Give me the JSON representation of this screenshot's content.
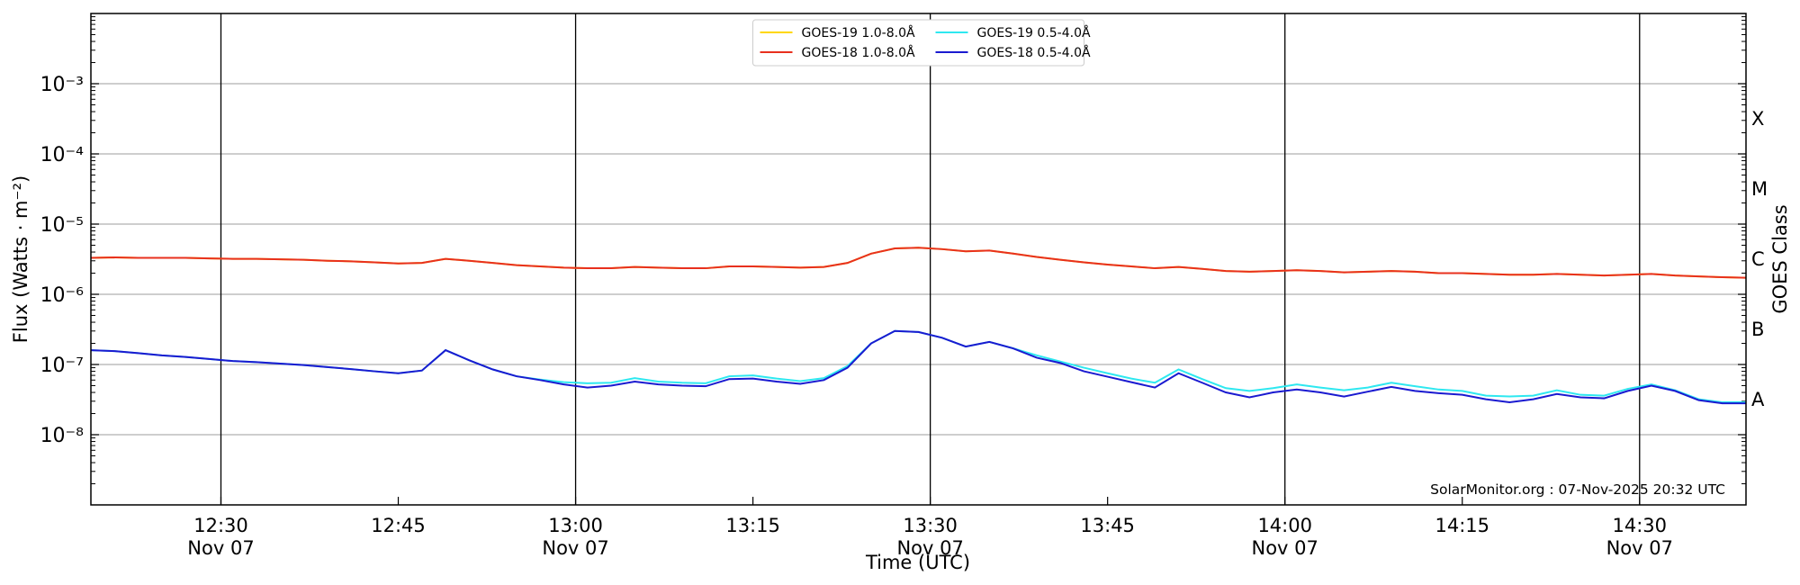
{
  "chart_data": {
    "type": "line",
    "y_scale": "log",
    "grid": "y",
    "legend": "upper center",
    "xlabel": "Time (UTC)",
    "ylabel": "Flux (Watts · m⁻²)",
    "y2label": "GOES Class",
    "annotation": "SolarMonitor.org : 07-Nov-2025 20:32 UTC",
    "xlim": [
      "12:19",
      "14:39"
    ],
    "xticks": [
      {
        "value": "12:30",
        "label": "12:30",
        "date": "Nov 07"
      },
      {
        "value": "12:45",
        "label": "12:45"
      },
      {
        "value": "13:00",
        "label": "13:00",
        "date": "Nov 07"
      },
      {
        "value": "13:15",
        "label": "13:15"
      },
      {
        "value": "13:30",
        "label": "13:30",
        "date": "Nov 07"
      },
      {
        "value": "13:45",
        "label": "13:45"
      },
      {
        "value": "14:00",
        "label": "14:00",
        "date": "Nov 07"
      },
      {
        "value": "14:15",
        "label": "14:15"
      },
      {
        "value": "14:30",
        "label": "14:30",
        "date": "Nov 07"
      }
    ],
    "ylim": [
      1e-09,
      0.01
    ],
    "yticks": [
      {
        "value": 1e-08,
        "label": "10⁻⁸"
      },
      {
        "value": 1e-07,
        "label": "10⁻⁷"
      },
      {
        "value": 1e-06,
        "label": "10⁻⁶"
      },
      {
        "value": 1e-05,
        "label": "10⁻⁵"
      },
      {
        "value": 0.0001,
        "label": "10⁻⁴"
      },
      {
        "value": 0.001,
        "label": "10⁻³"
      }
    ],
    "y2ticks": [
      {
        "value": 3.16e-08,
        "label": "A"
      },
      {
        "value": 3.16e-07,
        "label": "B"
      },
      {
        "value": 3.16e-06,
        "label": "C"
      },
      {
        "value": 3.16e-05,
        "label": "M"
      },
      {
        "value": 0.000316,
        "label": "X"
      }
    ],
    "x": [
      "12:19",
      "12:21",
      "12:23",
      "12:25",
      "12:27",
      "12:29",
      "12:31",
      "12:33",
      "12:35",
      "12:37",
      "12:39",
      "12:41",
      "12:43",
      "12:45",
      "12:47",
      "12:49",
      "12:51",
      "12:53",
      "12:55",
      "12:57",
      "12:59",
      "13:01",
      "13:03",
      "13:05",
      "13:07",
      "13:09",
      "13:11",
      "13:13",
      "13:15",
      "13:17",
      "13:19",
      "13:21",
      "13:23",
      "13:25",
      "13:27",
      "13:29",
      "13:31",
      "13:33",
      "13:35",
      "13:37",
      "13:39",
      "13:41",
      "13:43",
      "13:45",
      "13:47",
      "13:49",
      "13:51",
      "13:53",
      "13:55",
      "13:57",
      "13:59",
      "14:01",
      "14:03",
      "14:05",
      "14:07",
      "14:09",
      "14:11",
      "14:13",
      "14:15",
      "14:17",
      "14:19",
      "14:21",
      "14:23",
      "14:25",
      "14:27",
      "14:29",
      "14:31",
      "14:33",
      "14:35",
      "14:37",
      "14:39"
    ],
    "series": [
      {
        "name": "GOES-19 1.0-8.0Å",
        "color": "#ffd700",
        "values": [
          3.3e-06,
          3.35e-06,
          3.3e-06,
          3.3e-06,
          3.3e-06,
          3.25e-06,
          3.2e-06,
          3.2e-06,
          3.15e-06,
          3.1e-06,
          3e-06,
          2.95e-06,
          2.85e-06,
          2.75e-06,
          2.8e-06,
          3.2e-06,
          3e-06,
          2.8e-06,
          2.6e-06,
          2.5e-06,
          2.4e-06,
          2.35e-06,
          2.35e-06,
          2.45e-06,
          2.4e-06,
          2.35e-06,
          2.35e-06,
          2.5e-06,
          2.5e-06,
          2.45e-06,
          2.4e-06,
          2.45e-06,
          2.8e-06,
          3.8e-06,
          4.5e-06,
          4.6e-06,
          4.4e-06,
          4.1e-06,
          4.2e-06,
          3.8e-06,
          3.4e-06,
          3.1e-06,
          2.85e-06,
          2.65e-06,
          2.5e-06,
          2.35e-06,
          2.45e-06,
          2.3e-06,
          2.15e-06,
          2.1e-06,
          2.15e-06,
          2.2e-06,
          2.15e-06,
          2.05e-06,
          2.1e-06,
          2.15e-06,
          2.1e-06,
          2e-06,
          2e-06,
          1.95e-06,
          1.9e-06,
          1.9e-06,
          1.95e-06,
          1.9e-06,
          1.85e-06,
          1.9e-06,
          1.95e-06,
          1.85e-06,
          1.8e-06,
          1.75e-06,
          1.72e-06
        ]
      },
      {
        "name": "GOES-18 1.0-8.0Å",
        "color": "#e8301e",
        "values": [
          3.3e-06,
          3.35e-06,
          3.3e-06,
          3.3e-06,
          3.3e-06,
          3.25e-06,
          3.2e-06,
          3.2e-06,
          3.15e-06,
          3.1e-06,
          3e-06,
          2.95e-06,
          2.85e-06,
          2.75e-06,
          2.8e-06,
          3.2e-06,
          3e-06,
          2.8e-06,
          2.6e-06,
          2.5e-06,
          2.4e-06,
          2.35e-06,
          2.35e-06,
          2.45e-06,
          2.4e-06,
          2.35e-06,
          2.35e-06,
          2.5e-06,
          2.5e-06,
          2.45e-06,
          2.4e-06,
          2.45e-06,
          2.8e-06,
          3.8e-06,
          4.5e-06,
          4.6e-06,
          4.4e-06,
          4.1e-06,
          4.2e-06,
          3.8e-06,
          3.4e-06,
          3.1e-06,
          2.85e-06,
          2.65e-06,
          2.5e-06,
          2.35e-06,
          2.45e-06,
          2.3e-06,
          2.15e-06,
          2.1e-06,
          2.15e-06,
          2.2e-06,
          2.15e-06,
          2.05e-06,
          2.1e-06,
          2.15e-06,
          2.1e-06,
          2e-06,
          2e-06,
          1.95e-06,
          1.9e-06,
          1.9e-06,
          1.95e-06,
          1.9e-06,
          1.85e-06,
          1.9e-06,
          1.95e-06,
          1.85e-06,
          1.8e-06,
          1.75e-06,
          1.72e-06
        ]
      },
      {
        "name": "GOES-19 0.5-4.0Å",
        "color": "#2ee8f0",
        "values": [
          1.6e-07,
          1.55e-07,
          1.45e-07,
          1.35e-07,
          1.28e-07,
          1.2e-07,
          1.12e-07,
          1.08e-07,
          1.03e-07,
          9.8e-08,
          9.2e-08,
          8.6e-08,
          8e-08,
          7.5e-08,
          8.2e-08,
          1.6e-07,
          1.15e-07,
          8.5e-08,
          6.8e-08,
          6.1e-08,
          5.6e-08,
          5.4e-08,
          5.5e-08,
          6.4e-08,
          5.7e-08,
          5.5e-08,
          5.4e-08,
          6.8e-08,
          7e-08,
          6.3e-08,
          5.8e-08,
          6.4e-08,
          9.5e-08,
          2e-07,
          3e-07,
          2.9e-07,
          2.4e-07,
          1.8e-07,
          2.1e-07,
          1.7e-07,
          1.35e-07,
          1.1e-07,
          9e-08,
          7.5e-08,
          6.3e-08,
          5.5e-08,
          8.5e-08,
          6.2e-08,
          4.6e-08,
          4.2e-08,
          4.6e-08,
          5.2e-08,
          4.7e-08,
          4.3e-08,
          4.7e-08,
          5.5e-08,
          4.9e-08,
          4.4e-08,
          4.2e-08,
          3.6e-08,
          3.5e-08,
          3.6e-08,
          4.3e-08,
          3.7e-08,
          3.6e-08,
          4.5e-08,
          5.2e-08,
          4.3e-08,
          3.2e-08,
          2.9e-08,
          2.9e-08
        ]
      },
      {
        "name": "GOES-18 0.5-4.0Å",
        "color": "#1a1ad0",
        "values": [
          1.6e-07,
          1.55e-07,
          1.45e-07,
          1.35e-07,
          1.28e-07,
          1.2e-07,
          1.12e-07,
          1.08e-07,
          1.03e-07,
          9.8e-08,
          9.2e-08,
          8.6e-08,
          8e-08,
          7.5e-08,
          8.2e-08,
          1.6e-07,
          1.15e-07,
          8.5e-08,
          6.8e-08,
          6e-08,
          5.2e-08,
          4.7e-08,
          5e-08,
          5.7e-08,
          5.2e-08,
          5e-08,
          4.9e-08,
          6.2e-08,
          6.3e-08,
          5.7e-08,
          5.3e-08,
          6e-08,
          9e-08,
          2e-07,
          3e-07,
          2.9e-07,
          2.4e-07,
          1.8e-07,
          2.1e-07,
          1.7e-07,
          1.25e-07,
          1.05e-07,
          8e-08,
          6.7e-08,
          5.6e-08,
          4.7e-08,
          7.5e-08,
          5.5e-08,
          4e-08,
          3.4e-08,
          4e-08,
          4.4e-08,
          4e-08,
          3.5e-08,
          4.1e-08,
          4.8e-08,
          4.2e-08,
          3.9e-08,
          3.7e-08,
          3.2e-08,
          2.9e-08,
          3.2e-08,
          3.8e-08,
          3.4e-08,
          3.3e-08,
          4.2e-08,
          5e-08,
          4.2e-08,
          3.1e-08,
          2.8e-08,
          2.8e-08
        ]
      }
    ]
  }
}
